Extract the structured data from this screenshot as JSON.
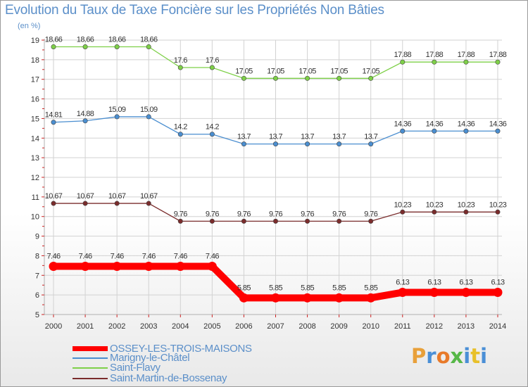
{
  "title": "Evolution du Taux de Taxe Foncière sur les Propriétés Non Bâties",
  "unit": "(en %)",
  "colors": {
    "title": "#5b8fc9",
    "grid": "#d2d2d2",
    "axis": "#b0b0b0",
    "tick_text": "#333333",
    "tick_mark": "#cc2222"
  },
  "logo": {
    "text": "Proxiti",
    "letter_colors": [
      "#e8a03a",
      "#4a8fd6",
      "#e87a2a",
      "#57b848",
      "#4a8fd6",
      "#e8c02a",
      "#4a8fd6"
    ]
  },
  "chart_data": {
    "type": "line",
    "title": "Evolution du Taux de Taxe Foncière sur les Propriétés Non Bâties",
    "ylabel": "(en %)",
    "xlabel": "",
    "x": [
      "2000",
      "2001",
      "2002",
      "2003",
      "2004",
      "2005",
      "2006",
      "2007",
      "2008",
      "2009",
      "2010",
      "2011",
      "2012",
      "2013",
      "2014"
    ],
    "ylim": [
      5,
      19
    ],
    "yticks": [
      5,
      6,
      7,
      8,
      9,
      10,
      11,
      12,
      13,
      14,
      15,
      16,
      17,
      18,
      19
    ],
    "grid": true,
    "legend_position": "bottom-left",
    "series": [
      {
        "name": "OSSEY-LES-TROIS-MAISONS",
        "color": "#ff0000",
        "emphasis": "thick",
        "values": [
          7.46,
          7.46,
          7.46,
          7.46,
          7.46,
          7.46,
          5.85,
          5.85,
          5.85,
          5.85,
          5.85,
          6.13,
          6.13,
          6.13,
          6.13
        ],
        "labels": [
          "7.46",
          "7.46",
          "7.46",
          "7.46",
          "7.46",
          "7.46",
          "5.85",
          "5.85",
          "5.85",
          "5.85",
          "5.85",
          "6.13",
          "6.13",
          "6.13",
          "6.13"
        ]
      },
      {
        "name": "Marigny-le-Châtel",
        "color": "#4a8ed0",
        "emphasis": "thin",
        "values": [
          14.81,
          14.88,
          15.09,
          15.09,
          14.2,
          14.2,
          13.7,
          13.7,
          13.7,
          13.7,
          13.7,
          14.36,
          14.36,
          14.36,
          14.36
        ],
        "labels": [
          "14.81",
          "14.88",
          "15.09",
          "15.09",
          "14.2",
          "14.2",
          "13.7",
          "13.7",
          "13.7",
          "13.7",
          "13.7",
          "14.36",
          "14.36",
          "14.36",
          "14.36"
        ]
      },
      {
        "name": "Saint-Flavy",
        "color": "#7ed048",
        "emphasis": "thin",
        "values": [
          18.66,
          18.66,
          18.66,
          18.66,
          17.6,
          17.6,
          17.05,
          17.05,
          17.05,
          17.05,
          17.05,
          17.88,
          17.88,
          17.88,
          17.88
        ],
        "labels": [
          "18.66",
          "18.66",
          "18.66",
          "18.66",
          "17.6",
          "17.6",
          "17.05",
          "17.05",
          "17.05",
          "17.05",
          "17.05",
          "17.88",
          "17.88",
          "17.88",
          "17.88"
        ]
      },
      {
        "name": "Saint-Martin-de-Bossenay",
        "color": "#7a2c2c",
        "emphasis": "thin",
        "values": [
          10.67,
          10.67,
          10.67,
          10.67,
          9.76,
          9.76,
          9.76,
          9.76,
          9.76,
          9.76,
          9.76,
          10.23,
          10.23,
          10.23,
          10.23
        ],
        "labels": [
          "10.67",
          "10.67",
          "10.67",
          "10.67",
          "9.76",
          "9.76",
          "9.76",
          "9.76",
          "9.76",
          "9.76",
          "9.76",
          "10.23",
          "10.23",
          "10.23",
          "10.23"
        ]
      }
    ]
  }
}
